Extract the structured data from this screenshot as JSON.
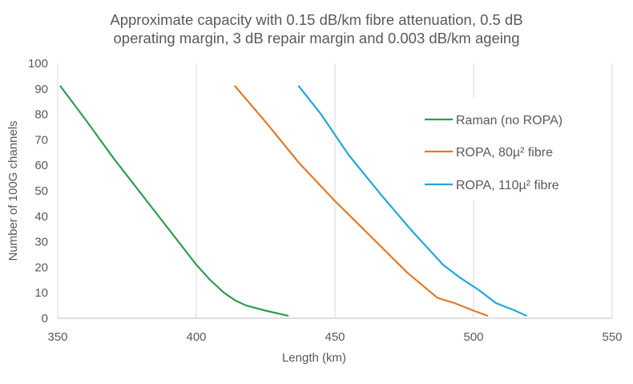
{
  "chart_data": {
    "type": "line",
    "title_line1": "Approximate capacity with 0.15 dB/km fibre attenuation, 0.5 dB",
    "title_line2": "operating margin, 3 dB repair margin and 0.003 dB/km ageing",
    "xlabel": "Length (km)",
    "ylabel": "Number of 100G channels",
    "xlim": [
      350,
      550
    ],
    "ylim": [
      0,
      100
    ],
    "xticks": [
      "350",
      "400",
      "450",
      "500",
      "550"
    ],
    "yticks": [
      "0",
      "10",
      "20",
      "30",
      "40",
      "50",
      "60",
      "70",
      "80",
      "90",
      "100"
    ],
    "grid": "vertical",
    "legend_position": "right",
    "series": [
      {
        "name": "Raman (no ROPA)",
        "color": "#2e9e4f",
        "x": [
          351,
          360,
          370,
          380,
          390,
          400,
          405,
          410,
          414,
          418,
          425,
          433
        ],
        "y": [
          91,
          78,
          63,
          49,
          35,
          21,
          15,
          10,
          7,
          5,
          3,
          1
        ]
      },
      {
        "name": "ROPA, 80µ² fibre",
        "color": "#e07b2e",
        "x": [
          414,
          425,
          437,
          450,
          463,
          476,
          487,
          493,
          500,
          505
        ],
        "y": [
          91,
          77,
          61,
          46,
          32,
          18,
          8,
          6,
          3,
          1
        ]
      },
      {
        "name": "ROPA, 110µ² fibre",
        "color": "#22a7d9",
        "x": [
          437,
          445,
          455,
          467,
          478,
          489,
          495,
          502,
          508,
          515,
          519
        ],
        "y": [
          91,
          80,
          64,
          48,
          34,
          21,
          16,
          11,
          6,
          3,
          1
        ]
      }
    ]
  }
}
